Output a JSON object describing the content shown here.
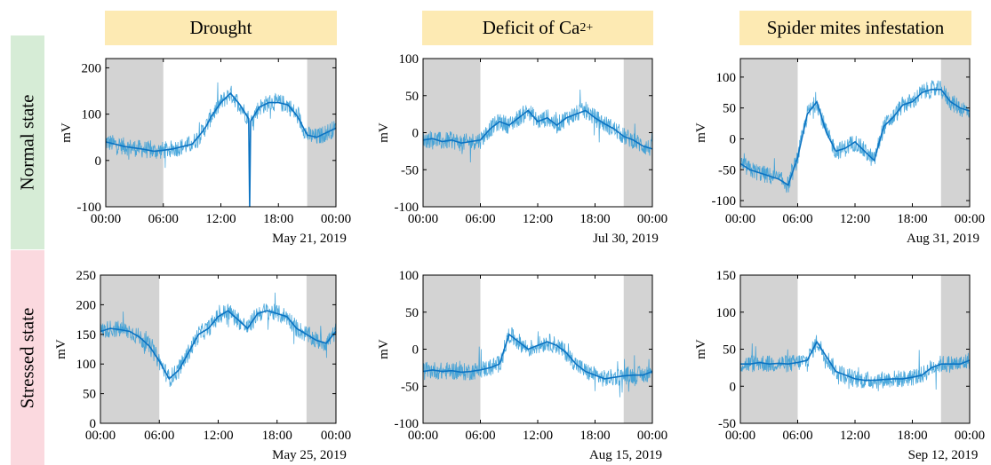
{
  "columns": [
    {
      "title": "Drought"
    },
    {
      "title_main": "Deficit of Ca",
      "title_sup": "2+"
    },
    {
      "title": "Spider mites infestation"
    }
  ],
  "rows": [
    {
      "label": "Normal state"
    },
    {
      "label": "Stressed state"
    }
  ],
  "colors": {
    "signal": "#0c73c2",
    "signal_light": "#2e9ad6",
    "night_shading": "#d3d3d3",
    "title_bg": "#fdeab3",
    "normal_bg": "#d6ecd6",
    "stressed_bg": "#fbd9df"
  },
  "chart_data": [
    {
      "type": "line",
      "panel": "normal-drought",
      "ylabel": "mV",
      "ylim": [
        -100,
        220
      ],
      "yticks": [
        -100,
        0,
        100,
        200
      ],
      "xticks": [
        "00:00",
        "06:00",
        "12:00",
        "18:00",
        "00:00"
      ],
      "xlim": [
        0,
        24
      ],
      "date": "May 21, 2019",
      "night": [
        [
          0,
          6
        ],
        [
          21,
          24
        ]
      ],
      "series": [
        {
          "x": [
            0,
            1,
            2,
            3,
            4,
            5,
            6,
            7,
            8,
            9,
            10,
            10.5,
            11,
            12,
            13,
            14,
            14.9,
            15,
            15.1,
            16,
            17,
            18,
            19,
            20,
            21,
            22,
            23,
            24
          ],
          "y": [
            40,
            35,
            30,
            27,
            24,
            20,
            22,
            25,
            30,
            35,
            60,
            75,
            95,
            125,
            145,
            120,
            90,
            -100,
            85,
            115,
            125,
            125,
            120,
            95,
            55,
            50,
            60,
            70
          ]
        }
      ]
    },
    {
      "type": "line",
      "panel": "normal-ca",
      "ylabel": "mV",
      "ylim": [
        -100,
        100
      ],
      "yticks": [
        -100,
        -50,
        0,
        50,
        100
      ],
      "xticks": [
        "00:00",
        "06:00",
        "12:00",
        "18:00",
        "00:00"
      ],
      "xlim": [
        0,
        24
      ],
      "date": "Jul 30, 2019",
      "night": [
        [
          0,
          6
        ],
        [
          21,
          24
        ]
      ],
      "series": [
        {
          "x": [
            0,
            1,
            2,
            3,
            4,
            5,
            6,
            7,
            8,
            9,
            10,
            11,
            12,
            13,
            14,
            15,
            16,
            17,
            18,
            19,
            20,
            21,
            22,
            23,
            24
          ],
          "y": [
            -10,
            -8,
            -12,
            -10,
            -14,
            -12,
            -10,
            5,
            15,
            10,
            20,
            30,
            15,
            20,
            10,
            20,
            25,
            30,
            20,
            12,
            5,
            -5,
            -10,
            -18,
            -22
          ]
        }
      ]
    },
    {
      "type": "line",
      "panel": "normal-mites",
      "ylabel": "mV",
      "ylim": [
        -110,
        130
      ],
      "yticks": [
        -100,
        -50,
        0,
        50,
        100
      ],
      "xticks": [
        "00:00",
        "06:00",
        "12:00",
        "18:00",
        "00:00"
      ],
      "xlim": [
        0,
        24
      ],
      "date": "Aug 31, 2019",
      "night": [
        [
          0,
          6
        ],
        [
          21,
          24
        ]
      ],
      "series": [
        {
          "x": [
            0,
            1,
            2,
            3,
            4,
            5,
            6,
            7,
            8,
            9,
            10,
            11,
            12,
            13,
            14,
            15,
            16,
            17,
            18,
            19,
            20,
            21,
            22,
            23,
            24
          ],
          "y": [
            -40,
            -50,
            -55,
            -60,
            -65,
            -75,
            -30,
            40,
            60,
            10,
            -20,
            -15,
            -5,
            -20,
            -35,
            20,
            35,
            55,
            60,
            75,
            80,
            80,
            60,
            50,
            45
          ]
        }
      ]
    },
    {
      "type": "line",
      "panel": "stressed-drought",
      "ylabel": "mV",
      "ylim": [
        0,
        250
      ],
      "yticks": [
        0,
        50,
        100,
        150,
        200,
        250
      ],
      "xticks": [
        "00:00",
        "06:00",
        "12:00",
        "18:00",
        "00:00"
      ],
      "xlim": [
        0,
        24
      ],
      "date": "May 25, 2019",
      "night": [
        [
          0,
          6
        ],
        [
          21,
          24
        ]
      ],
      "series": [
        {
          "x": [
            0,
            1,
            2,
            3,
            4,
            5,
            6,
            7,
            8,
            9,
            10,
            11,
            12,
            13,
            14,
            15,
            16,
            17,
            18,
            19,
            20,
            21,
            22,
            23,
            24
          ],
          "y": [
            155,
            160,
            158,
            155,
            145,
            130,
            105,
            75,
            90,
            120,
            150,
            160,
            180,
            190,
            175,
            160,
            185,
            190,
            185,
            180,
            160,
            150,
            140,
            135,
            155
          ]
        }
      ]
    },
    {
      "type": "line",
      "panel": "stressed-ca",
      "ylabel": "mV",
      "ylim": [
        -100,
        100
      ],
      "yticks": [
        -100,
        -50,
        0,
        50,
        100
      ],
      "xticks": [
        "00:00",
        "06:00",
        "12:00",
        "18:00",
        "00:00"
      ],
      "xlim": [
        0,
        24
      ],
      "date": "Aug 15, 2019",
      "night": [
        [
          0,
          6
        ],
        [
          21,
          24
        ]
      ],
      "series": [
        {
          "x": [
            0,
            1,
            2,
            3,
            4,
            5,
            6,
            7,
            8,
            9,
            10,
            11,
            12,
            13,
            14,
            15,
            16,
            17,
            18,
            19,
            20,
            21,
            22,
            23,
            24
          ],
          "y": [
            -30,
            -28,
            -30,
            -29,
            -31,
            -30,
            -28,
            -25,
            -20,
            20,
            10,
            0,
            5,
            10,
            5,
            -5,
            -20,
            -30,
            -35,
            -40,
            -38,
            -36,
            -35,
            -35,
            -30
          ]
        }
      ]
    },
    {
      "type": "line",
      "panel": "stressed-mites",
      "ylabel": "mV",
      "ylim": [
        -50,
        150
      ],
      "yticks": [
        -50,
        0,
        50,
        100,
        150
      ],
      "xticks": [
        "00:00",
        "06:00",
        "12:00",
        "18:00",
        "00:00"
      ],
      "xlim": [
        0,
        24
      ],
      "date": "Sep 12, 2019",
      "night": [
        [
          0,
          6
        ],
        [
          21,
          24
        ]
      ],
      "series": [
        {
          "x": [
            0,
            1,
            2,
            3,
            4,
            5,
            6,
            7,
            8,
            9,
            10,
            11,
            12,
            13,
            14,
            15,
            16,
            17,
            18,
            19,
            20,
            21,
            22,
            23,
            24
          ],
          "y": [
            30,
            30,
            32,
            30,
            31,
            30,
            32,
            35,
            60,
            40,
            20,
            15,
            10,
            8,
            8,
            9,
            10,
            10,
            12,
            15,
            25,
            30,
            30,
            30,
            35
          ]
        }
      ]
    }
  ]
}
